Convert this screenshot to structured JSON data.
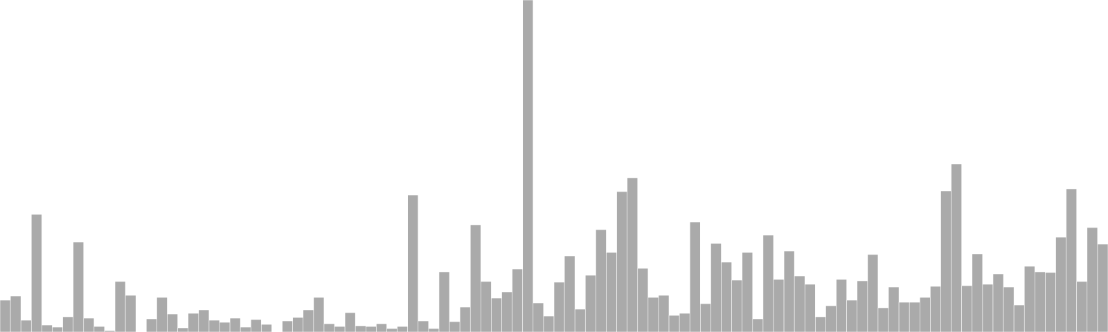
{
  "chart_data": {
    "type": "bar",
    "title": "",
    "xlabel": "",
    "ylabel": "",
    "grid": false,
    "legend": "none",
    "bar_color": "#aaaaaa",
    "ylim": [
      0,
      480
    ],
    "values": [
      46,
      52,
      17,
      170,
      10,
      7,
      22,
      130,
      20,
      8,
      2,
      73,
      53,
      0,
      19,
      50,
      26,
      6,
      27,
      32,
      17,
      14,
      20,
      7,
      18,
      11,
      0,
      16,
      21,
      32,
      50,
      12,
      8,
      28,
      9,
      8,
      12,
      5,
      8,
      198,
      16,
      5,
      87,
      15,
      36,
      155,
      73,
      49,
      58,
      91,
      480,
      42,
      23,
      72,
      110,
      33,
      82,
      148,
      115,
      203,
      223,
      92,
      50,
      53,
      24,
      27,
      159,
      41,
      128,
      101,
      75,
      115,
      19,
      140,
      76,
      117,
      81,
      69,
      22,
      38,
      76,
      46,
      74,
      112,
      35,
      65,
      43,
      43,
      50,
      66,
      204,
      243,
      67,
      113,
      69,
      84,
      65,
      39,
      95,
      87,
      86,
      137,
      207,
      73,
      151,
      127
    ]
  }
}
